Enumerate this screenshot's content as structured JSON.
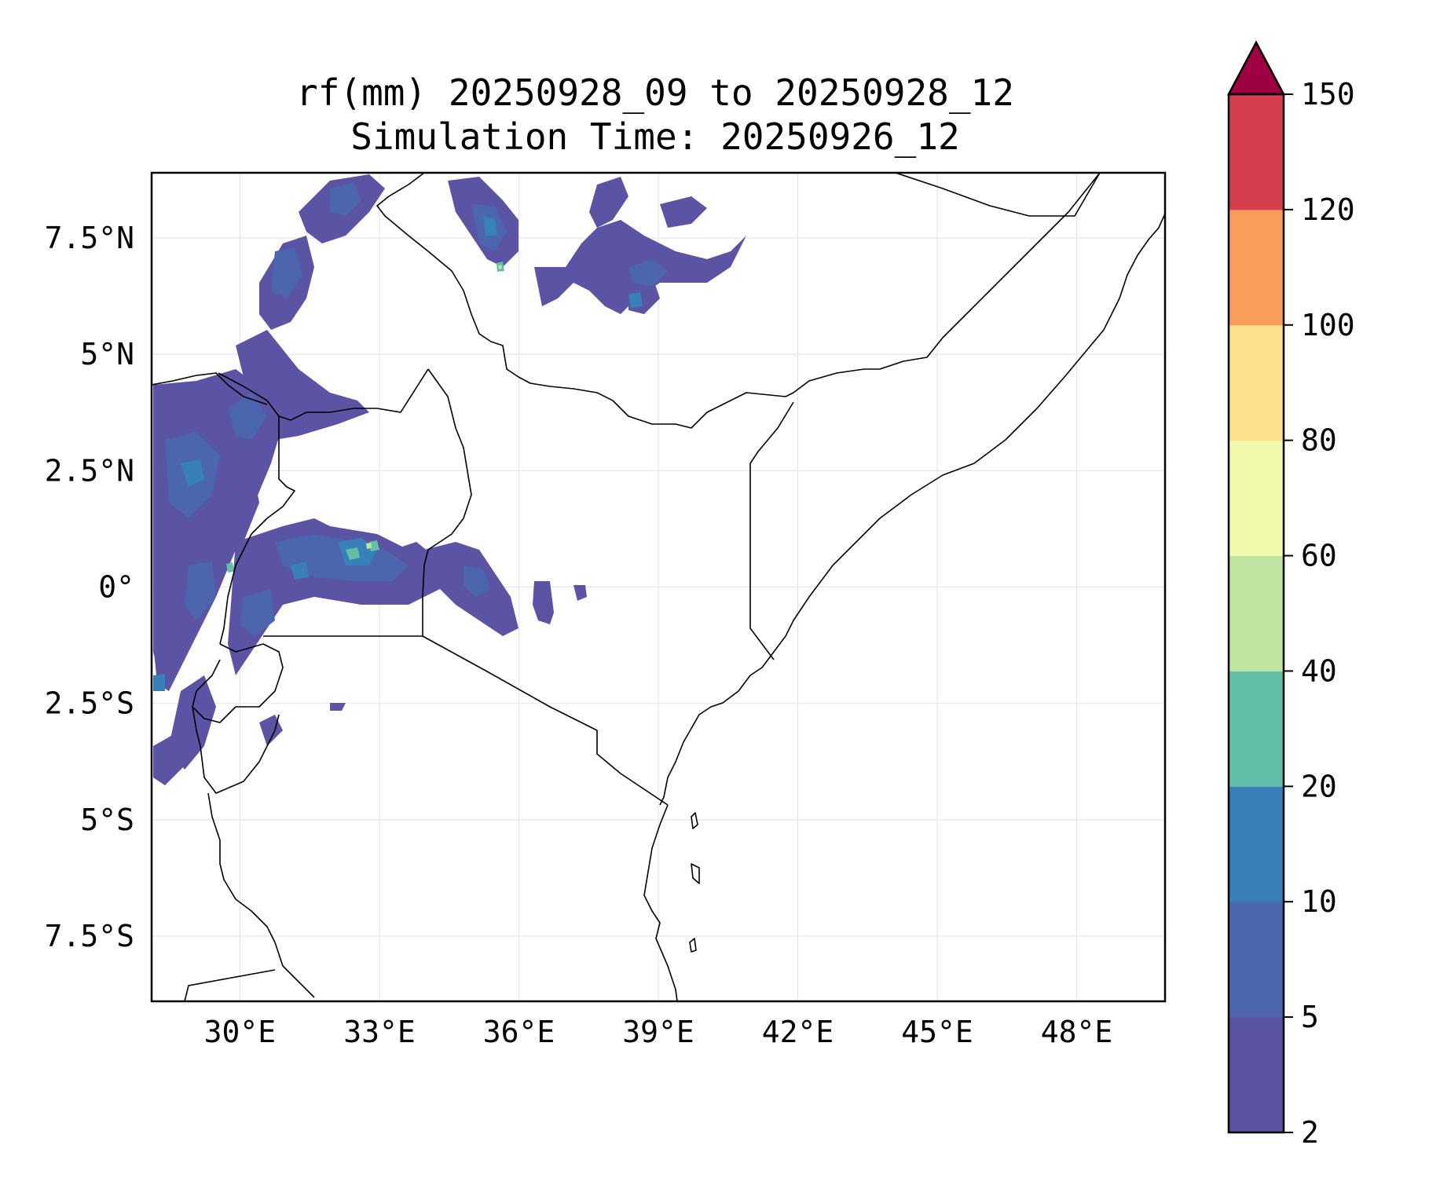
{
  "chart_data": {
    "type": "filled-contour-map",
    "title": "rf(mm) 20250928_09 to 20250928_12",
    "subtitle": "Simulation Time: 20250926_12",
    "variable": "rf(mm)",
    "x_ticks": [
      "30°E",
      "33°E",
      "36°E",
      "39°E",
      "42°E",
      "45°E",
      "48°E"
    ],
    "y_ticks": [
      "7.5°N",
      "5°N",
      "2.5°N",
      "0°",
      "2.5°S",
      "5°S",
      "7.5°S"
    ],
    "lon_range": [
      28.1,
      49.9
    ],
    "lat_range": [
      -8.9,
      8.9
    ],
    "grid": true,
    "colorbar": {
      "levels": [
        "2",
        "5",
        "10",
        "20",
        "40",
        "60",
        "80",
        "100",
        "120",
        "150"
      ],
      "colors": [
        "#5b53a4",
        "#4b65ae",
        "#3880b9",
        "#62bea6",
        "#bde5a0",
        "#f2f9ab",
        "#fce08b",
        "#f99e59",
        "#d53e4f"
      ],
      "extend_color": "#9e0142",
      "extend": "max"
    }
  }
}
